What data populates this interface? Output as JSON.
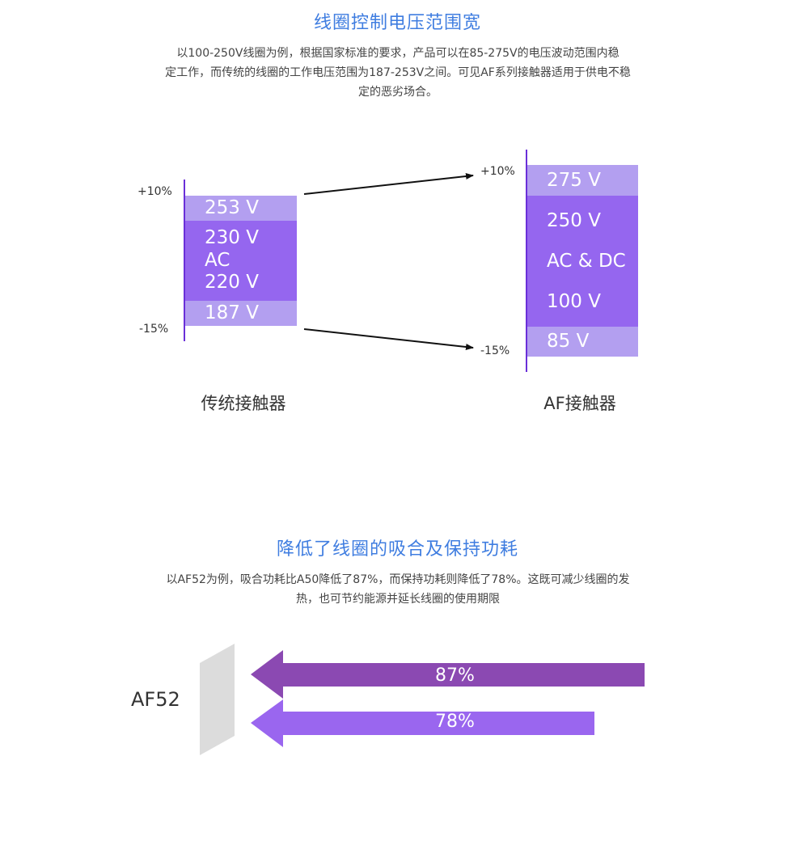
{
  "section1": {
    "title": "线圈控制电压范围宽",
    "paragraph_lines": [
      "以100-250V线圈为例，根据国家标准的要求，产品可以在85-275V的电压波动范围内稳",
      "定工作，而传统的线圈的工作电压范围为187-253V之间。可见AF系列接触器适用于供电不稳",
      "定的恶劣场合。"
    ],
    "traditional": {
      "caption": "传统接触器",
      "upper_pct": "+10%",
      "lower_pct": "-15%",
      "top_value": "253 V",
      "mid_values": [
        "230 V",
        "AC",
        "220 V"
      ],
      "bottom_value": "187 V"
    },
    "af": {
      "caption": "AF接触器",
      "upper_pct": "+10%",
      "lower_pct": "-15%",
      "top_value": "275 V",
      "mid_values": [
        "250 V",
        "AC & DC",
        "100 V"
      ],
      "bottom_value": "85 V"
    }
  },
  "section2": {
    "title": "降低了线圈的吸合及保持功耗",
    "paragraph_lines": [
      "以AF52为例，吸合功耗比A50降低了87%，而保持功耗则降低了78%。这既可减少线圈的发",
      "热，也可节约能源并延长线圈的使用期限"
    ],
    "product_label": "AF52",
    "pull_in_reduction": "87%",
    "holding_reduction": "78%"
  },
  "colors": {
    "title": "#3f7de0",
    "light_purple": "#b39ff0",
    "mid_purple": "#9566ef",
    "dark_arrow": "#8b49b2",
    "light_arrow": "#9a66ef",
    "axis_line": "#6a2fd8",
    "panel_gray": "#dcdcdc"
  }
}
